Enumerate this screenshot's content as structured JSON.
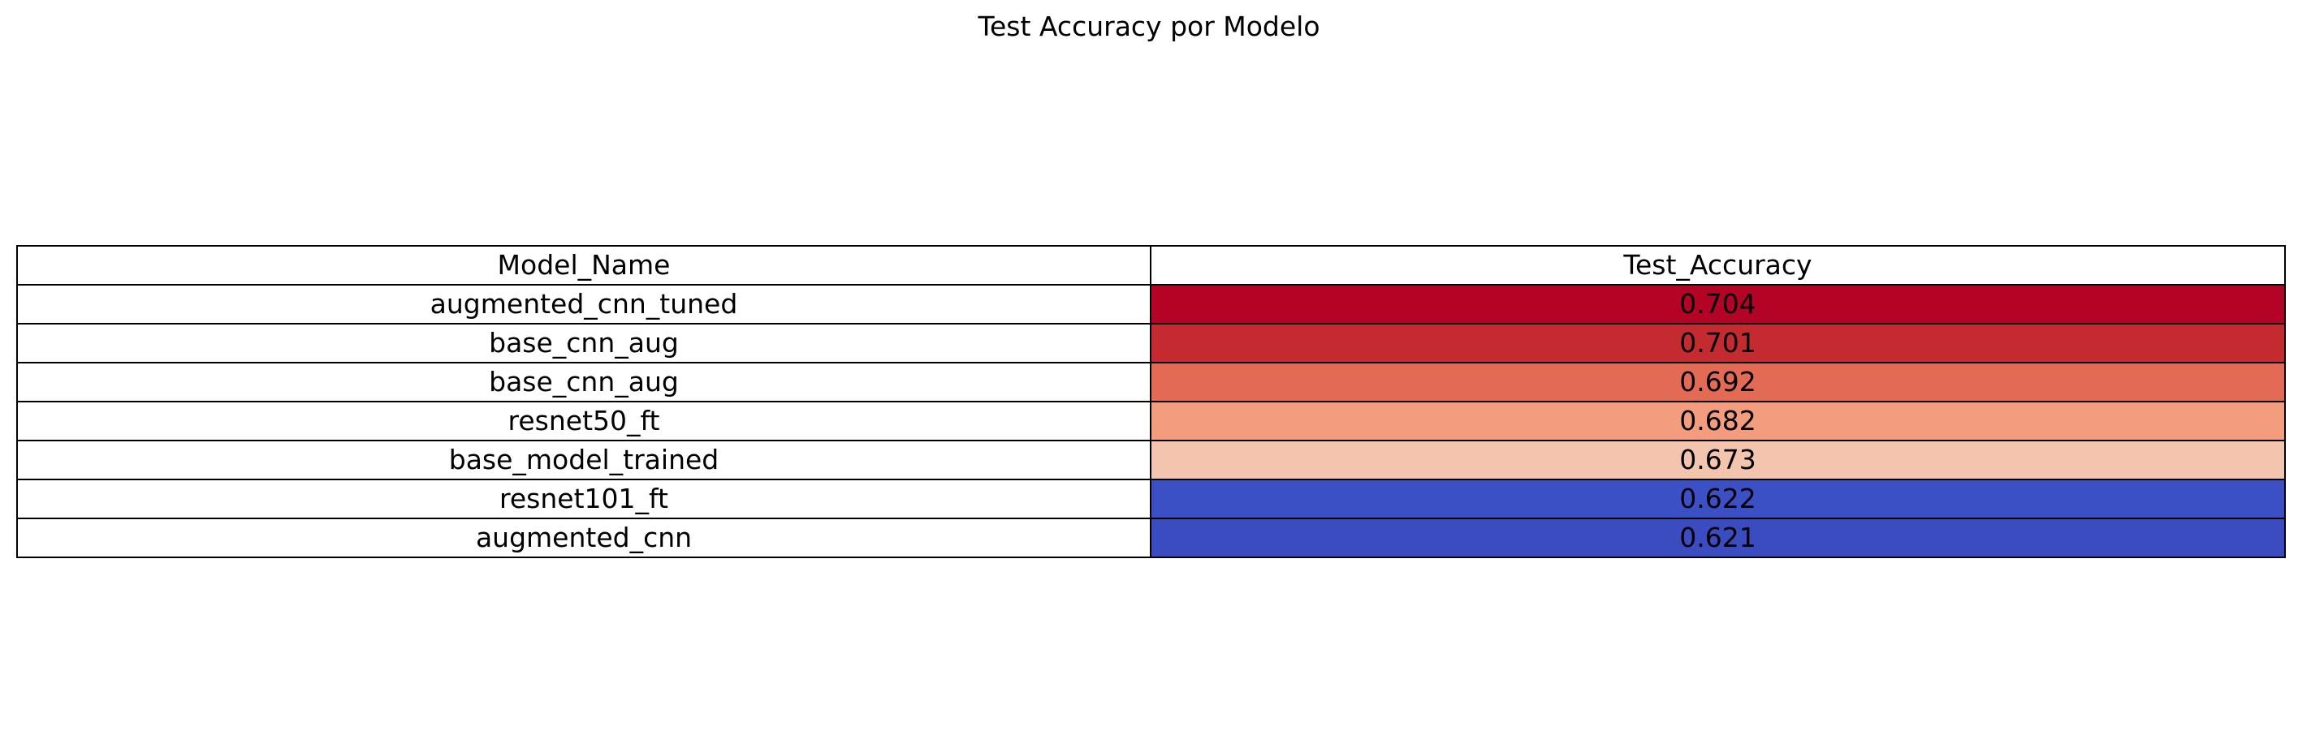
{
  "chart_data": {
    "type": "table",
    "title": "Test Accuracy por Modelo",
    "columns": [
      "Model_Name",
      "Test_Accuracy"
    ],
    "rows": [
      {
        "name": "augmented_cnn_tuned",
        "accuracy": "0.704",
        "color": "#b40426"
      },
      {
        "name": "base_cnn_aug",
        "accuracy": "0.701",
        "color": "#c32b31"
      },
      {
        "name": "base_cnn_aug",
        "accuracy": "0.692",
        "color": "#e36b56"
      },
      {
        "name": "resnet50_ft",
        "accuracy": "0.682",
        "color": "#f49c7e"
      },
      {
        "name": "base_model_trained",
        "accuracy": "0.673",
        "color": "#f3c4ae"
      },
      {
        "name": "resnet101_ft",
        "accuracy": "0.622",
        "color": "#3c50c6"
      },
      {
        "name": "augmented_cnn",
        "accuracy": "0.621",
        "color": "#3b4cc0"
      }
    ],
    "colormap": "coolwarm"
  }
}
